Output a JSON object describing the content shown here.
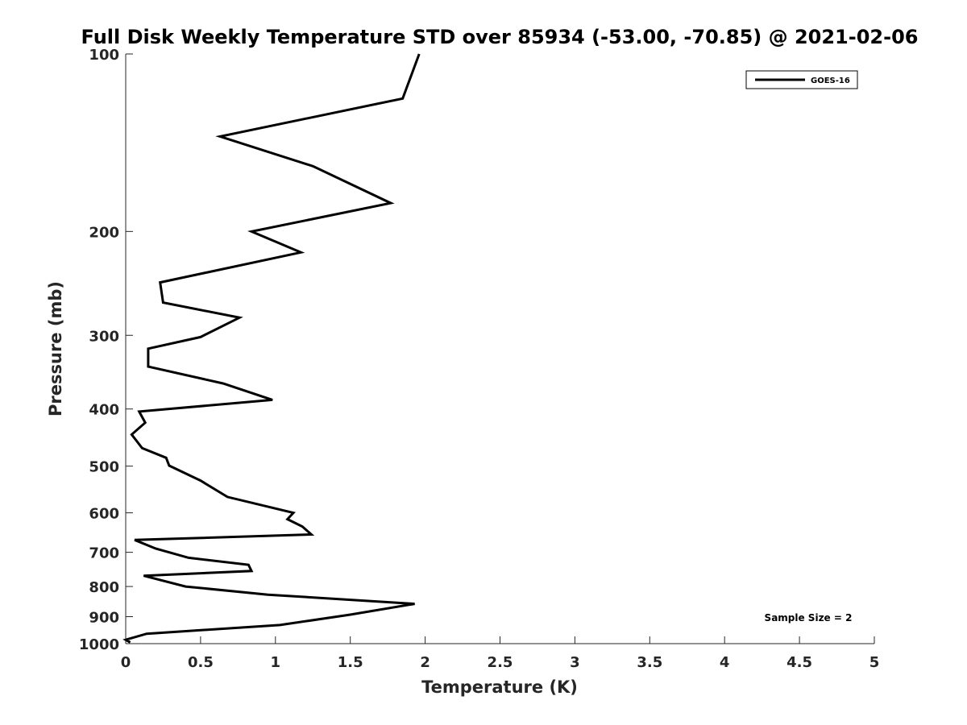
{
  "chart_data": {
    "type": "line",
    "title": "Full Disk Weekly Temperature STD over 85934 (-53.00, -70.85) @ 2021-02-06",
    "xlabel": "Temperature (K)",
    "ylabel": "Pressure (mb)",
    "xlim": [
      0,
      5
    ],
    "ylim": [
      100,
      1000
    ],
    "y_scale": "log",
    "y_reversed": true,
    "x_ticks": [
      "0",
      "0.5",
      "1",
      "1.5",
      "2",
      "2.5",
      "3",
      "3.5",
      "4",
      "4.5",
      "5"
    ],
    "x_tick_values": [
      0,
      0.5,
      1,
      1.5,
      2,
      2.5,
      3,
      3.5,
      4,
      4.5,
      5
    ],
    "y_ticks": [
      "100",
      "200",
      "300",
      "400",
      "500",
      "600",
      "700",
      "800",
      "900",
      "1000"
    ],
    "y_tick_values": [
      100,
      200,
      300,
      400,
      500,
      600,
      700,
      800,
      900,
      1000
    ],
    "grid": false,
    "legend_position": "top-right",
    "annotation": "Sample Size = 2",
    "line_color": "#000000",
    "series": [
      {
        "name": "GOES-16",
        "x": [
          1.96,
          1.85,
          0.63,
          1.25,
          1.77,
          0.84,
          1.17,
          0.23,
          0.25,
          0.76,
          0.5,
          0.15,
          0.15,
          0.65,
          0.98,
          0.09,
          0.13,
          0.04,
          0.11,
          0.27,
          0.29,
          0.5,
          0.68,
          1.12,
          1.08,
          1.18,
          1.24,
          0.06,
          0.2,
          0.42,
          0.82,
          0.84,
          0.12,
          0.4,
          0.95,
          1.93,
          1.5,
          1.03,
          0.14,
          0.0,
          0.03
        ],
        "y": [
          100,
          119,
          138,
          155,
          179,
          200,
          217,
          244,
          264,
          280,
          302,
          316,
          339,
          362,
          386,
          404,
          422,
          442,
          466,
          484,
          499,
          529,
          564,
          600,
          615,
          633,
          653,
          667,
          690,
          715,
          735,
          753,
          767,
          800,
          826,
          856,
          893,
          930,
          962,
          985,
          995
        ]
      }
    ]
  }
}
